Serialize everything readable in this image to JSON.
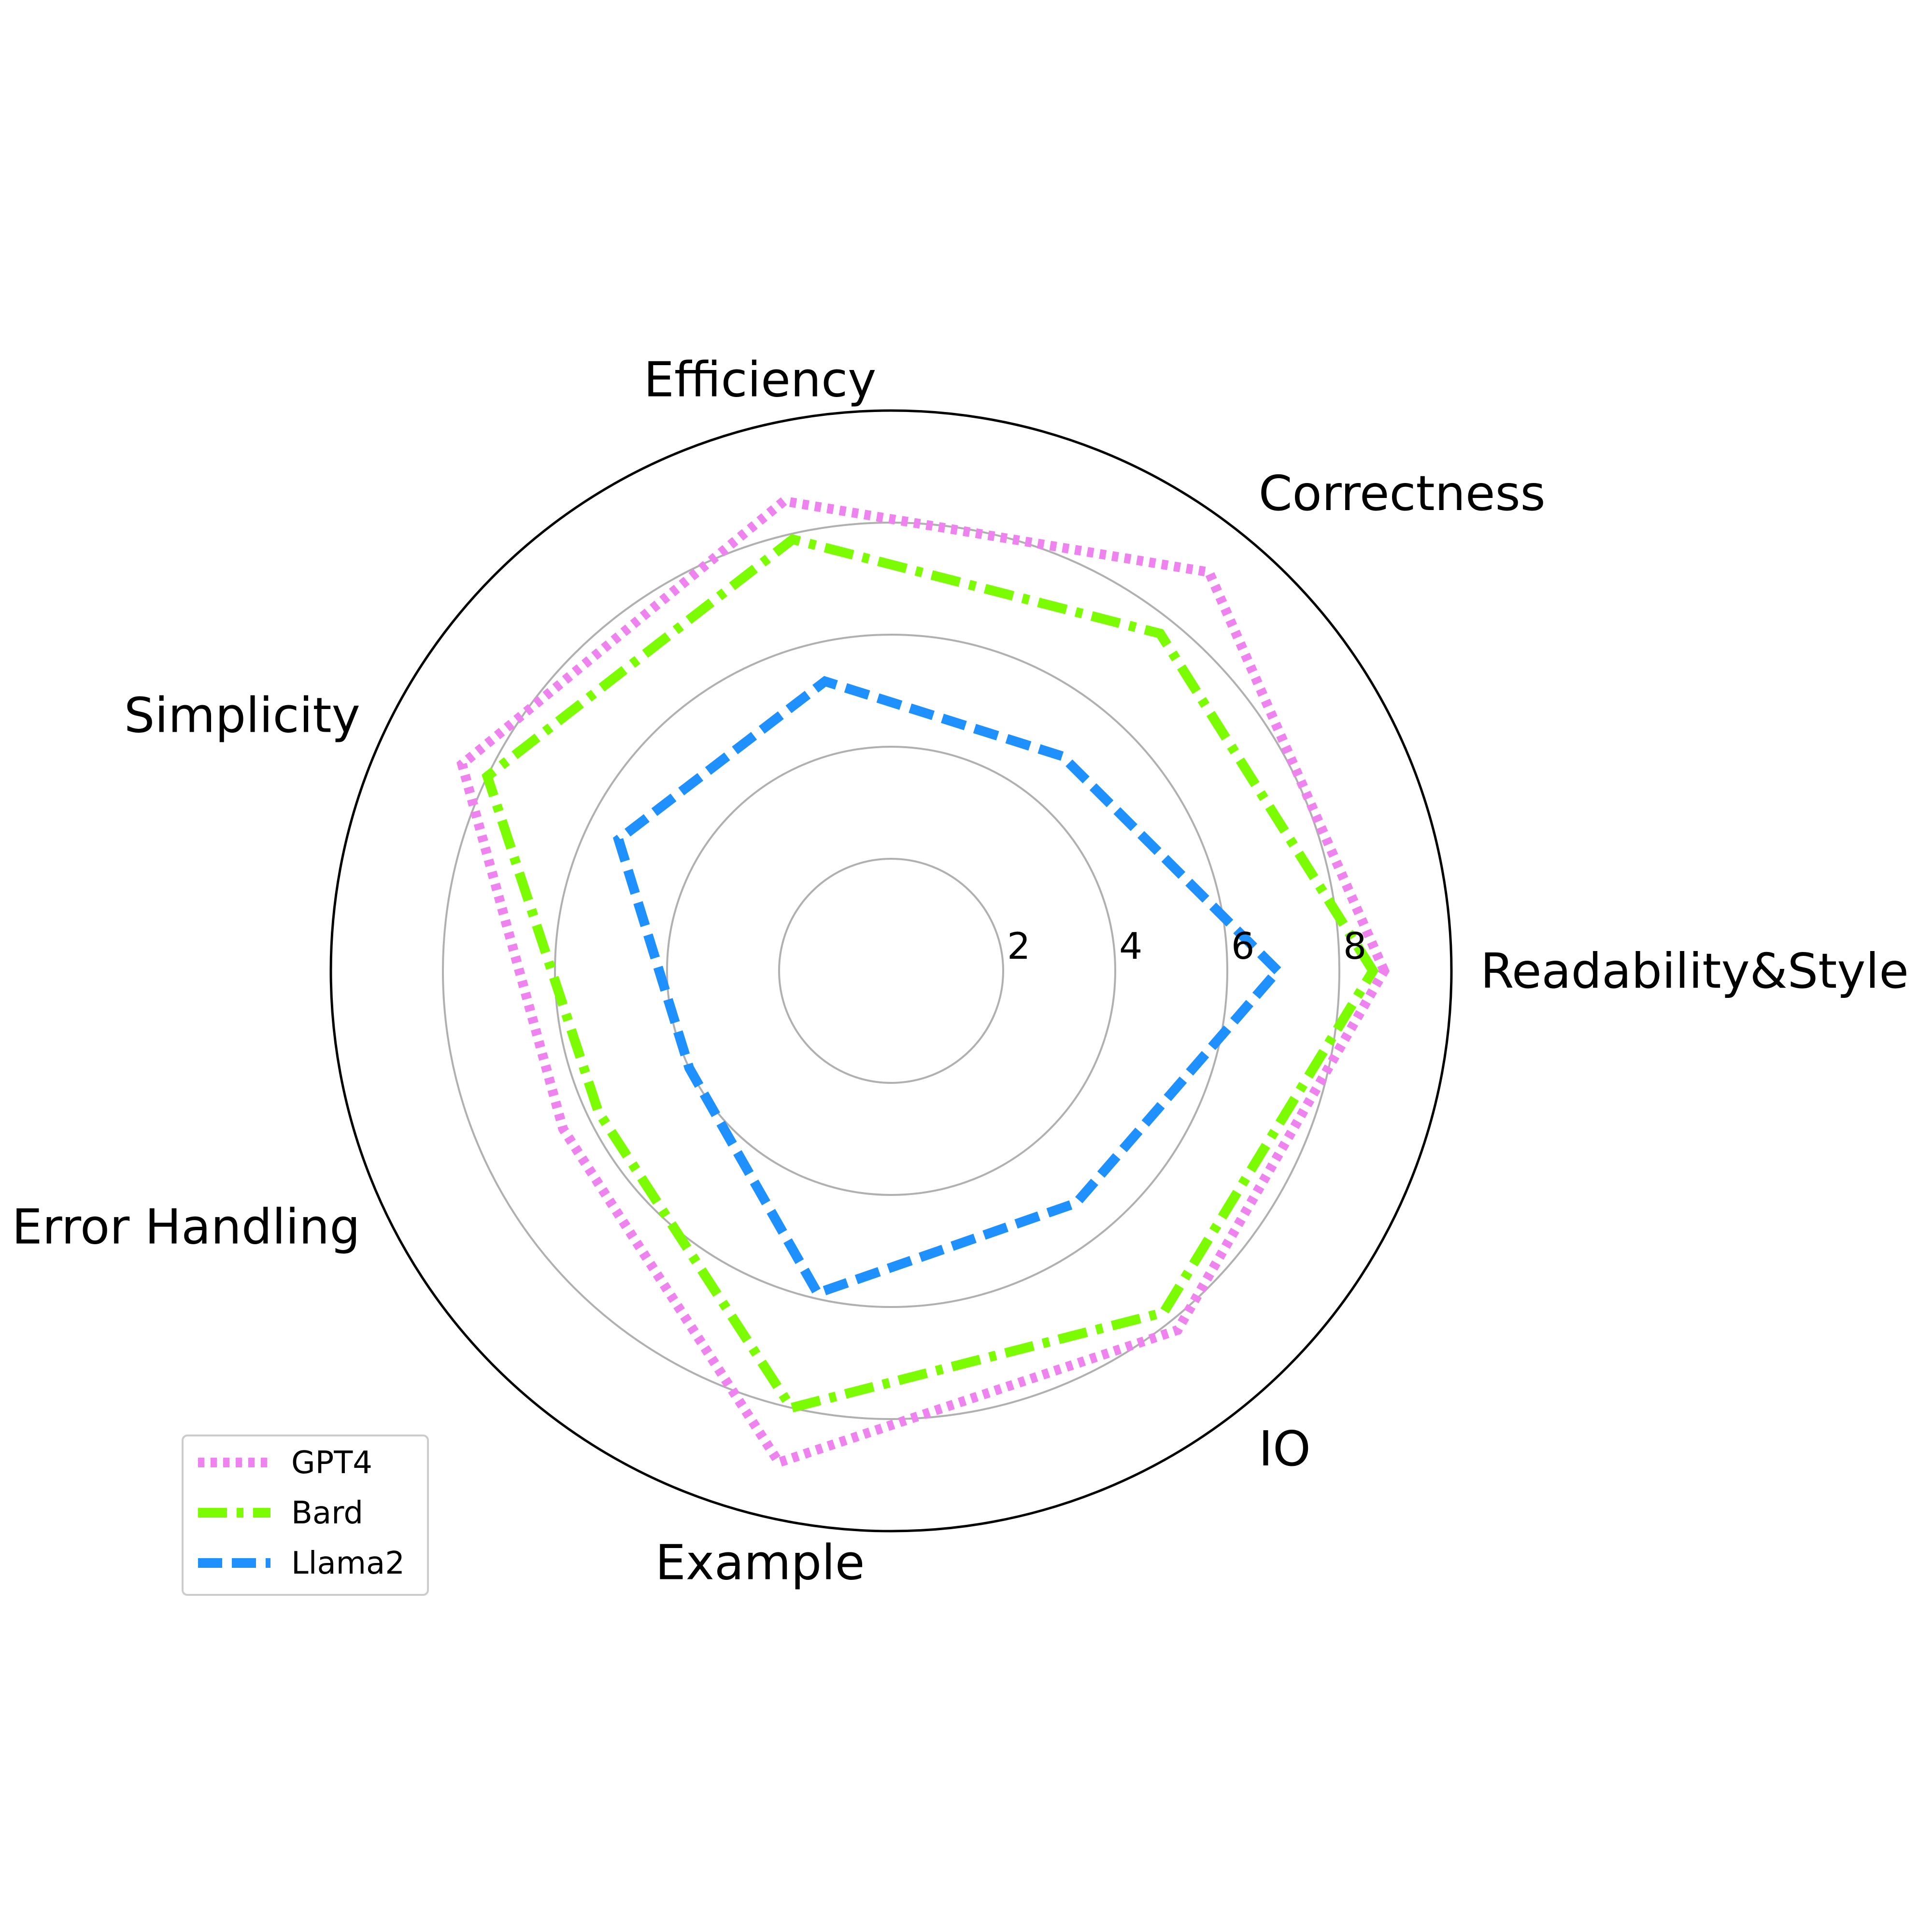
{
  "chart_data": {
    "type": "radar",
    "axes": [
      "Readability&Style",
      "Correctness",
      "Efficiency",
      "Simplicity",
      "Error Handling",
      "Example",
      "IO"
    ],
    "rlim": [
      0,
      10
    ],
    "ticks": [
      2,
      4,
      6,
      8
    ],
    "tick_labels": [
      "2",
      "4",
      "6",
      "8"
    ],
    "grid": true,
    "legend_position": "lower-left",
    "series": [
      {
        "name": "GPT4",
        "values": [
          8.8,
          9.1,
          8.6,
          8.5,
          6.5,
          9.0,
          8.2
        ],
        "color": "#ee82ee",
        "style": "dotted"
      },
      {
        "name": "Bard",
        "values": [
          8.6,
          7.7,
          7.9,
          8.0,
          5.8,
          8.0,
          7.8
        ],
        "color": "#7cfc00",
        "style": "dashdot"
      },
      {
        "name": "Llama2",
        "values": [
          6.9,
          4.9,
          5.3,
          5.4,
          4.0,
          5.9,
          5.3
        ],
        "color": "#1e90ff",
        "style": "dashed"
      }
    ]
  }
}
